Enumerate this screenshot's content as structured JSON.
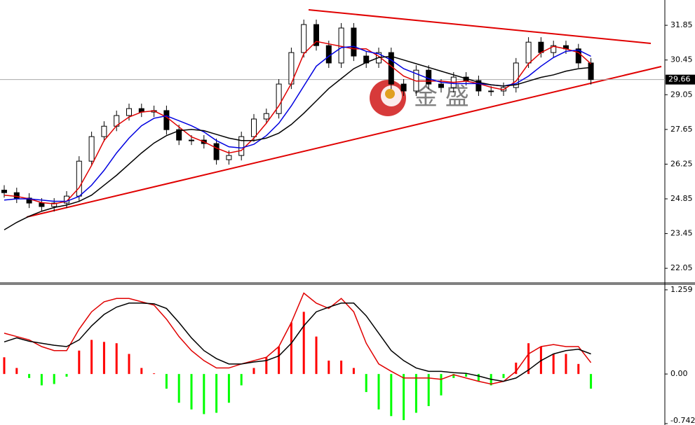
{
  "chart_data": [
    {
      "type": "candlestick",
      "open": [
        25.2,
        25.1,
        24.88,
        24.68,
        24.54,
        24.68,
        24.96,
        26.37,
        27.36,
        27.78,
        28.21,
        28.49,
        28.35,
        28.41,
        27.64,
        27.22,
        27.22,
        27.08,
        26.43,
        26.6,
        27.36,
        28.07,
        28.29,
        29.48,
        30.75,
        31.88,
        31.03,
        30.33,
        31.74,
        30.61,
        30.33,
        30.75,
        29.48,
        29.2,
        30.04,
        29.48,
        29.34,
        29.76,
        29.62,
        29.2,
        29.2,
        29.34,
        30.33,
        31.17,
        30.75,
        31.03,
        30.9,
        30.33
      ],
      "high": [
        25.4,
        25.3,
        25.08,
        24.88,
        24.88,
        25.16,
        26.57,
        27.56,
        27.98,
        28.41,
        28.69,
        28.69,
        28.61,
        28.61,
        27.84,
        27.42,
        27.42,
        27.28,
        26.8,
        27.56,
        28.27,
        28.49,
        29.68,
        30.95,
        32.08,
        32.08,
        31.23,
        31.94,
        31.94,
        30.81,
        30.95,
        30.95,
        29.68,
        30.24,
        30.24,
        29.68,
        29.96,
        29.96,
        29.82,
        29.4,
        29.54,
        30.53,
        31.37,
        31.37,
        31.23,
        31.23,
        31.1,
        30.53
      ],
      "low": [
        24.9,
        24.68,
        24.48,
        24.34,
        24.34,
        24.48,
        24.76,
        26.17,
        27.16,
        27.58,
        28.01,
        28.15,
        28.15,
        27.44,
        27.02,
        27.02,
        26.88,
        26.23,
        26.23,
        26.4,
        27.16,
        27.87,
        28.09,
        29.28,
        30.55,
        30.83,
        30.13,
        30.13,
        30.41,
        30.13,
        30.13,
        29.28,
        29.0,
        29.0,
        29.28,
        29.14,
        29.14,
        29.42,
        29.0,
        29.0,
        29.0,
        29.14,
        30.13,
        30.55,
        30.55,
        30.7,
        30.13,
        29.46
      ],
      "close": [
        25.1,
        24.88,
        24.68,
        24.54,
        24.68,
        24.96,
        26.37,
        27.36,
        27.78,
        28.21,
        28.49,
        28.35,
        28.41,
        27.64,
        27.22,
        27.22,
        27.08,
        26.43,
        26.6,
        27.36,
        28.07,
        28.29,
        29.48,
        30.75,
        31.88,
        31.03,
        30.33,
        31.74,
        30.61,
        30.33,
        30.75,
        29.48,
        29.2,
        30.04,
        29.48,
        29.34,
        29.76,
        29.62,
        29.2,
        29.2,
        29.34,
        30.33,
        31.17,
        30.75,
        31.03,
        30.9,
        30.33,
        29.66
      ],
      "series": [
        {
          "color": "#e00000",
          "values": [
            25.0,
            24.95,
            24.85,
            24.7,
            24.65,
            24.75,
            25.3,
            26.2,
            27.2,
            27.8,
            28.15,
            28.35,
            28.4,
            28.15,
            27.75,
            27.35,
            27.15,
            26.9,
            26.7,
            26.8,
            27.3,
            27.9,
            28.6,
            29.5,
            30.7,
            31.2,
            31.1,
            31.0,
            30.9,
            30.9,
            30.6,
            30.2,
            29.8,
            29.6,
            29.6,
            29.6,
            29.55,
            29.6,
            29.5,
            29.35,
            29.25,
            29.6,
            30.3,
            30.75,
            31.0,
            30.9,
            30.75,
            30.3
          ]
        },
        {
          "color": "#0000e0",
          "values": [
            24.8,
            24.85,
            24.85,
            24.8,
            24.75,
            24.75,
            24.95,
            25.4,
            26.0,
            26.7,
            27.3,
            27.8,
            28.1,
            28.2,
            28.0,
            27.8,
            27.55,
            27.2,
            26.95,
            26.9,
            27.05,
            27.4,
            27.9,
            28.6,
            29.4,
            30.2,
            30.6,
            30.95,
            31.0,
            30.8,
            30.7,
            30.45,
            30.1,
            29.9,
            29.7,
            29.55,
            29.5,
            29.5,
            29.5,
            29.45,
            29.4,
            29.5,
            29.8,
            30.2,
            30.55,
            30.8,
            30.85,
            30.6
          ]
        },
        {
          "color": "#000000",
          "values": [
            23.6,
            23.9,
            24.15,
            24.35,
            24.5,
            24.6,
            24.75,
            25.0,
            25.4,
            25.8,
            26.25,
            26.7,
            27.1,
            27.4,
            27.6,
            27.65,
            27.6,
            27.45,
            27.3,
            27.2,
            27.2,
            27.3,
            27.5,
            27.85,
            28.3,
            28.8,
            29.3,
            29.7,
            30.1,
            30.35,
            30.55,
            30.6,
            30.45,
            30.3,
            30.15,
            30.0,
            29.85,
            29.7,
            29.55,
            29.45,
            29.4,
            29.45,
            29.6,
            29.75,
            29.85,
            30.0,
            30.1,
            30.15
          ]
        }
      ],
      "ylim": [
        21.49,
        32.87
      ],
      "yticks": [
        31.85,
        30.45,
        29.05,
        27.65,
        26.25,
        24.85,
        23.45,
        22.05
      ],
      "last_price": 29.66,
      "watermark": "金 盛"
    },
    {
      "type": "macd",
      "histogram": [
        0.25,
        0.09,
        -0.06,
        -0.17,
        -0.15,
        -0.04,
        0.35,
        0.51,
        0.48,
        0.46,
        0.3,
        0.09,
        0.01,
        -0.22,
        -0.43,
        -0.53,
        -0.6,
        -0.58,
        -0.43,
        -0.17,
        0.09,
        0.25,
        0.41,
        0.77,
        0.93,
        0.56,
        0.2,
        0.2,
        0.09,
        -0.27,
        -0.53,
        -0.63,
        -0.69,
        -0.58,
        -0.48,
        -0.32,
        -0.06,
        -0.04,
        -0.11,
        -0.17,
        -0.06,
        0.17,
        0.46,
        0.41,
        0.3,
        0.3,
        0.15,
        -0.22
      ],
      "up_color": "#ff0000",
      "down_color": "#00ff00",
      "series": [
        {
          "color": "#e00000",
          "values": [
            0.61,
            0.56,
            0.51,
            0.41,
            0.35,
            0.35,
            0.67,
            0.93,
            1.08,
            1.13,
            1.13,
            1.08,
            1.03,
            0.82,
            0.56,
            0.35,
            0.2,
            0.09,
            0.09,
            0.15,
            0.2,
            0.25,
            0.41,
            0.77,
            1.21,
            1.06,
            0.98,
            1.13,
            0.93,
            0.46,
            0.15,
            0.04,
            -0.06,
            -0.06,
            -0.06,
            -0.08,
            -0.01,
            -0.06,
            -0.11,
            -0.15,
            -0.11,
            0.04,
            0.3,
            0.41,
            0.44,
            0.41,
            0.41,
            0.17
          ]
        },
        {
          "color": "#000000",
          "values": [
            0.48,
            0.54,
            0.49,
            0.46,
            0.43,
            0.41,
            0.51,
            0.72,
            0.89,
            1.0,
            1.06,
            1.06,
            1.05,
            0.98,
            0.77,
            0.54,
            0.35,
            0.23,
            0.15,
            0.15,
            0.18,
            0.2,
            0.27,
            0.46,
            0.72,
            0.93,
            1.0,
            1.06,
            1.06,
            0.87,
            0.61,
            0.35,
            0.2,
            0.09,
            0.04,
            0.04,
            0.02,
            0.01,
            -0.03,
            -0.08,
            -0.11,
            -0.06,
            0.06,
            0.2,
            0.3,
            0.35,
            0.37,
            0.3
          ]
        }
      ],
      "ylim": [
        -0.742,
        1.342
      ],
      "yticks": [
        1.259,
        {
          "value": 0,
          "label": "0.00"
        },
        -0.742
      ]
    }
  ]
}
